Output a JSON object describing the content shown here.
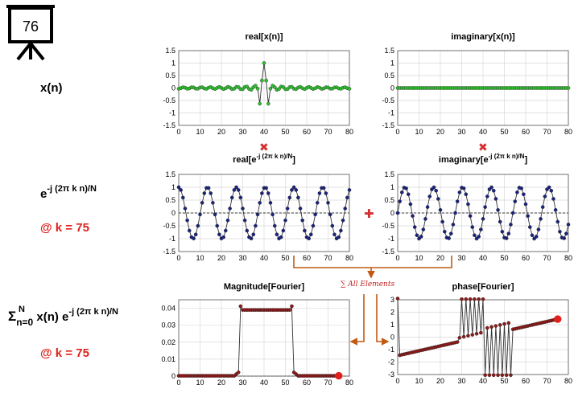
{
  "slide": {
    "number": "76"
  },
  "rows": {
    "signal": {
      "label": "x(n)"
    },
    "kernel": {
      "base": "e",
      "exponent": "-j (2π k n)/N",
      "at_k": "@ k = 75"
    },
    "sum": {
      "sigma": "Σ",
      "upper": "N",
      "lower": "n=0",
      "body": "x(n) e",
      "exponent": "-j (2π k n)/N",
      "at_k": "@ k = 75"
    }
  },
  "titles": {
    "real_x": "real[x(n)]",
    "imag_x": "imaginary[x(n)]",
    "real_e_pre": "real[e",
    "real_e_exp": "-j (2π k n)/N",
    "real_e_post": "]",
    "imag_e_pre": "imaginary[e",
    "imag_e_exp": "-j (2π k n)/N",
    "imag_e_post": "]",
    "magnitude": "Magnitude[Fourier]",
    "phase": "phase[Fourier]"
  },
  "operators": {
    "multiply": "✖",
    "plus": "✚"
  },
  "sum_note": "∑ All Elements",
  "colors": {
    "green": "#2fbf2f",
    "navy": "#1a237e",
    "darkred": "#8b1a1a",
    "red": "#e0201a",
    "orange": "#c25a12",
    "grid": "#d9d9d9"
  },
  "chart_data": [
    {
      "id": "real_x",
      "type": "line",
      "title": "real[x(n)]",
      "xlim": [
        0,
        80
      ],
      "ylim": [
        -1.5,
        1.5
      ],
      "xticks": [
        0,
        10,
        20,
        30,
        40,
        50,
        60,
        70,
        80
      ],
      "yticks": [
        1.5,
        1,
        0.5,
        0,
        -0.5,
        -1,
        -1.5
      ],
      "x_values": "n = 0..80",
      "formula": "sinc-like pulse centred at n = 40, peak 1.0, min ≈ -0.63 at n = 38 and 42"
    },
    {
      "id": "imag_x",
      "type": "line",
      "title": "imaginary[x(n)]",
      "xlim": [
        0,
        80
      ],
      "ylim": [
        -1.5,
        1.5
      ],
      "xticks": [
        0,
        10,
        20,
        30,
        40,
        50,
        60,
        70,
        80
      ],
      "yticks": [
        1.5,
        1,
        0.5,
        0,
        -0.5,
        -1,
        -1.5
      ],
      "values": "0 for all n = 0..80"
    },
    {
      "id": "real_kernel",
      "type": "line",
      "title": "real[e^-j (2π k n)/N]",
      "xlim": [
        0,
        80
      ],
      "ylim": [
        -1.5,
        1.5
      ],
      "xticks": [
        0,
        10,
        20,
        30,
        40,
        50,
        60,
        70,
        80
      ],
      "yticks": [
        1.5,
        1,
        0.5,
        0,
        -0.5,
        -1,
        -1.5
      ],
      "formula": "cos(2π·75·n/81), n = 0..80, about 6 cycles"
    },
    {
      "id": "imag_kernel",
      "type": "line",
      "title": "imaginary[e^-j (2π k n)/N]",
      "xlim": [
        0,
        80
      ],
      "ylim": [
        -1.5,
        1.5
      ],
      "xticks": [
        0,
        10,
        20,
        30,
        40,
        50,
        60,
        70,
        80
      ],
      "yticks": [
        1.5,
        1,
        0.5,
        0,
        -0.5,
        -1,
        -1.5
      ],
      "formula": "-sin(2π·75·n/81), n = 0..80"
    },
    {
      "id": "magnitude",
      "type": "line",
      "title": "Magnitude[Fourier]",
      "xlim": [
        0,
        80
      ],
      "ylim": [
        0,
        0.045
      ],
      "xticks": [
        0,
        10,
        20,
        30,
        40,
        50,
        60,
        70,
        80
      ],
      "yticks": [
        0,
        0.01,
        0.02,
        0.03,
        0.04
      ],
      "x_values": "k = 0..75",
      "formula": "≈0.039 for k = 29..53 (0.041 at edges), ≈0 elsewhere",
      "highlight_k": 75
    },
    {
      "id": "phase",
      "type": "line",
      "title": "phase[Fourier]",
      "xlim": [
        0,
        80
      ],
      "ylim": [
        -3,
        3
      ],
      "xticks": [
        0,
        10,
        20,
        30,
        40,
        50,
        60,
        70,
        80
      ],
      "yticks": [
        3,
        2,
        1,
        0,
        -1,
        -2,
        -3
      ],
      "x_values": "k = 0..75",
      "formula": "linear -1.45 at k=1 to 1.45 at k=75, with alternating ±3 jumps for k = 29..53; 3.1 at k=0",
      "highlight_k": 75
    }
  ]
}
